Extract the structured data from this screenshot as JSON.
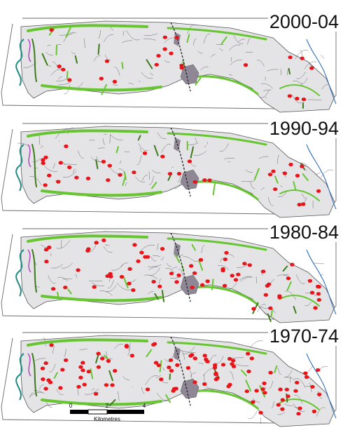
{
  "panels": [
    {
      "label": "2000-04",
      "site_count": 22
    },
    {
      "label": "1990-94",
      "site_count": 34
    },
    {
      "label": "1980-84",
      "site_count": 62
    },
    {
      "label": "1970-74",
      "site_count": 90
    }
  ],
  "scale_bar": {
    "ticks": [
      "0",
      "2",
      "4"
    ],
    "unit": "Kilometres"
  },
  "colors": {
    "sites": "#e8141a",
    "habitat": "#66c531",
    "habitat_dark": "#3e7a1e",
    "fields": "#e4e4e6",
    "urban": "#8f8796",
    "water": "#2e6fb8",
    "coast": "#1f8a86",
    "boundary": "#b64cc7"
  }
}
